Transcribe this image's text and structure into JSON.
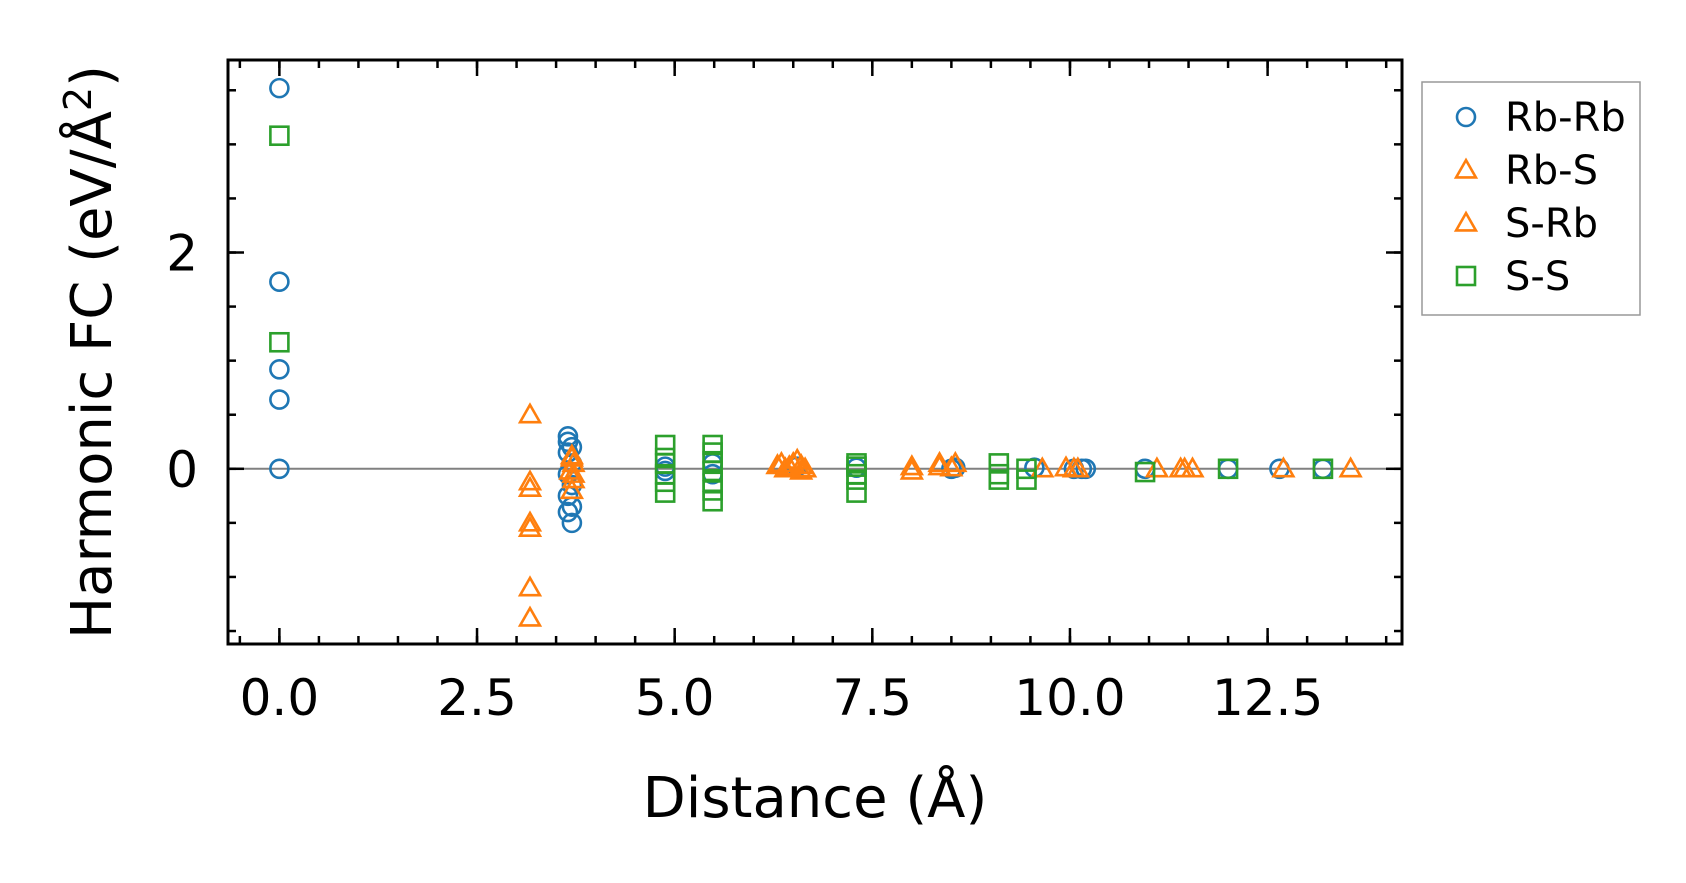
{
  "chart_data": {
    "type": "scatter",
    "title": "",
    "xlabel": "Distance (Å)",
    "ylabel_main": "Harmonic FC (eV/Å",
    "ylabel_sup": "2",
    "ylabel_close": ")",
    "xlim": [
      -0.65,
      14.2
    ],
    "ylim": [
      -1.62,
      3.78
    ],
    "x_ticks": [
      0.0,
      2.5,
      5.0,
      7.5,
      10.0,
      12.5
    ],
    "x_tick_labels": [
      "0.0",
      "2.5",
      "5.0",
      "7.5",
      "10.0",
      "12.5"
    ],
    "y_ticks": [
      0,
      2
    ],
    "y_tick_labels": [
      "0",
      "2"
    ],
    "x_minor_step": 0.5,
    "y_minor_step": 0.5,
    "grid": false,
    "zero_line": true,
    "legend_position": "outside-right",
    "series": [
      {
        "name": "Rb-Rb",
        "marker": "circle",
        "color": "#1f77b4",
        "points": [
          [
            0.0,
            3.52
          ],
          [
            0.0,
            1.73
          ],
          [
            0.0,
            0.92
          ],
          [
            0.0,
            0.64
          ],
          [
            0.0,
            0.0
          ],
          [
            3.65,
            0.3
          ],
          [
            3.65,
            0.25
          ],
          [
            3.7,
            0.2
          ],
          [
            3.65,
            0.15
          ],
          [
            3.7,
            0.05
          ],
          [
            3.65,
            -0.05
          ],
          [
            3.7,
            -0.15
          ],
          [
            3.65,
            -0.25
          ],
          [
            3.7,
            -0.35
          ],
          [
            3.65,
            -0.4
          ],
          [
            3.7,
            -0.5
          ],
          [
            4.88,
            0.02
          ],
          [
            4.88,
            -0.02
          ],
          [
            5.48,
            0.05
          ],
          [
            5.48,
            -0.05
          ],
          [
            6.55,
            0.02
          ],
          [
            7.3,
            0.01
          ],
          [
            8.5,
            0.0
          ],
          [
            8.55,
            0.01
          ],
          [
            9.55,
            0.01
          ],
          [
            10.05,
            0.0
          ],
          [
            10.15,
            0.0
          ],
          [
            10.2,
            0.0
          ],
          [
            10.95,
            0.0
          ],
          [
            12.0,
            0.0
          ],
          [
            12.65,
            0.0
          ],
          [
            13.2,
            0.0
          ]
        ]
      },
      {
        "name": "Rb-S",
        "marker": "triangle",
        "color": "#ff7f0e",
        "points": [
          [
            3.17,
            0.5
          ],
          [
            3.17,
            -0.12
          ],
          [
            3.17,
            -0.18
          ],
          [
            3.17,
            -0.5
          ],
          [
            3.17,
            -0.55
          ],
          [
            3.17,
            -1.1
          ],
          [
            3.17,
            -1.38
          ],
          [
            3.7,
            0.12
          ],
          [
            3.72,
            0.05
          ],
          [
            3.68,
            -0.02
          ],
          [
            3.72,
            -0.1
          ],
          [
            3.7,
            -0.2
          ],
          [
            6.35,
            0.05
          ],
          [
            6.4,
            0.0
          ],
          [
            6.45,
            0.02
          ],
          [
            6.55,
            0.08
          ],
          [
            6.6,
            0.03
          ],
          [
            6.65,
            0.0
          ],
          [
            8.0,
            0.02
          ],
          [
            8.35,
            0.02
          ],
          [
            8.5,
            0.01
          ],
          [
            9.65,
            0.0
          ],
          [
            9.95,
            0.01
          ],
          [
            10.1,
            0.0
          ],
          [
            11.1,
            0.0
          ],
          [
            11.4,
            0.0
          ],
          [
            11.55,
            0.0
          ],
          [
            12.7,
            0.0
          ],
          [
            13.55,
            0.0
          ]
        ]
      },
      {
        "name": "S-Rb",
        "marker": "triangle",
        "color": "#ff7f0e",
        "points": [
          [
            3.7,
            0.1
          ],
          [
            3.72,
            -0.05
          ],
          [
            6.3,
            0.03
          ],
          [
            6.5,
            0.05
          ],
          [
            6.6,
            -0.02
          ],
          [
            8.0,
            -0.02
          ],
          [
            8.35,
            0.05
          ],
          [
            8.55,
            0.05
          ],
          [
            10.05,
            0.0
          ],
          [
            11.45,
            0.0
          ]
        ]
      },
      {
        "name": "S-S",
        "marker": "square",
        "color": "#2ca02c",
        "points": [
          [
            0.0,
            3.08
          ],
          [
            0.0,
            1.17
          ],
          [
            4.88,
            0.22
          ],
          [
            4.88,
            0.1
          ],
          [
            4.88,
            0.05
          ],
          [
            4.88,
            -0.05
          ],
          [
            4.88,
            -0.12
          ],
          [
            4.88,
            -0.22
          ],
          [
            5.48,
            0.22
          ],
          [
            5.48,
            0.15
          ],
          [
            5.48,
            0.07
          ],
          [
            5.48,
            -0.02
          ],
          [
            5.48,
            -0.12
          ],
          [
            5.48,
            -0.2
          ],
          [
            5.48,
            -0.3
          ],
          [
            7.3,
            0.05
          ],
          [
            7.3,
            0.02
          ],
          [
            7.3,
            -0.05
          ],
          [
            7.3,
            -0.1
          ],
          [
            7.3,
            -0.22
          ],
          [
            9.1,
            0.05
          ],
          [
            9.1,
            -0.05
          ],
          [
            9.1,
            -0.1
          ],
          [
            9.45,
            0.0
          ],
          [
            9.45,
            -0.1
          ],
          [
            10.95,
            -0.03
          ],
          [
            12.0,
            0.0
          ],
          [
            13.2,
            0.0
          ]
        ]
      }
    ]
  }
}
